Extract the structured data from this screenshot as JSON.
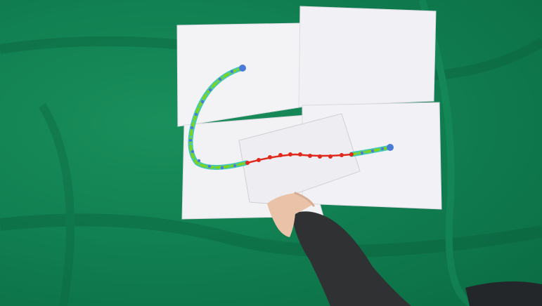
{
  "scene": {
    "background_color": "#118052",
    "paper_color": "#f4f4f6",
    "rope_color": "#3ec8c0",
    "rope_marker_color": "#4a7bd8",
    "rope_dash_color": "#7ed321",
    "tracked_segment_color": "#e0281c",
    "sleeve_color": "#2f3133",
    "skin_color": "#e9c2a8"
  }
}
